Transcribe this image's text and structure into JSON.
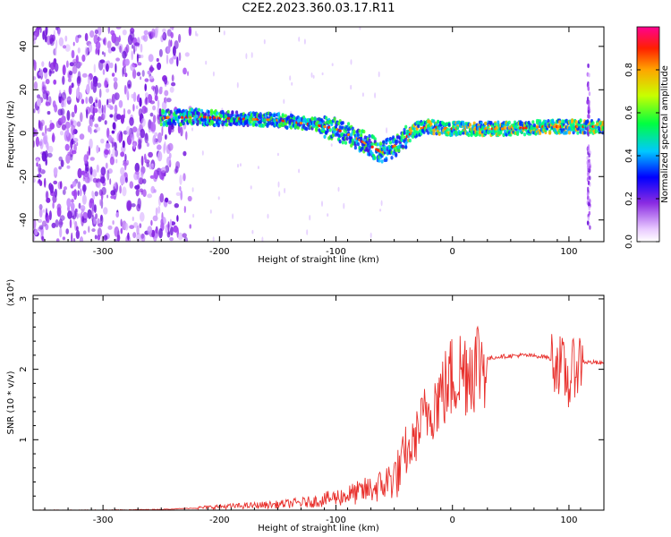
{
  "title": "C2E2.2023.360.03.17.R11",
  "chart_data": [
    {
      "type": "heatmap",
      "xlabel": "Height of straight line (km)",
      "ylabel": "Frequency (Hz)",
      "xlim": [
        -360,
        130
      ],
      "ylim": [
        -50,
        49
      ],
      "xticks": [
        -300,
        -200,
        -100,
        0,
        100
      ],
      "yticks": [
        -40,
        -20,
        0,
        20,
        40
      ],
      "colorbar": {
        "label": "Normalized spectral amplitude",
        "range": [
          0,
          1
        ],
        "ticks": [
          "0.0",
          "0.2",
          "0.4",
          "0.6",
          "0.8"
        ]
      },
      "ridge": {
        "x": [
          -250,
          -220,
          -200,
          -150,
          -120,
          -100,
          -80,
          -60,
          -50,
          -40,
          -30,
          -20,
          0,
          50,
          80,
          100,
          130
        ],
        "y": [
          7,
          7.5,
          7,
          6,
          4,
          2,
          -3,
          -9,
          -6,
          -2,
          2,
          3,
          2,
          2,
          3,
          3,
          3
        ]
      },
      "spike_x": 117
    },
    {
      "type": "line",
      "xlabel": "Height of straight line (km)",
      "ylabel": "SNR (10 * v/v)",
      "y_multiplier": "(x10⁴)",
      "xlim": [
        -360,
        130
      ],
      "ylim": [
        0,
        3.05
      ],
      "xticks": [
        -300,
        -200,
        -100,
        0,
        100
      ],
      "yticks": [
        1,
        2,
        3
      ],
      "series": [
        {
          "color": "#e8302c",
          "x": [
            -360,
            -300,
            -250,
            -220,
            -200,
            -180,
            -150,
            -120,
            -100,
            -80,
            -60,
            -45,
            -35,
            -25,
            -15,
            -5,
            0,
            10,
            20,
            30,
            40,
            60,
            80,
            90,
            95,
            100,
            105,
            110,
            115,
            120,
            130
          ],
          "y": [
            0,
            0,
            0.01,
            0.03,
            0.05,
            0.06,
            0.08,
            0.12,
            0.18,
            0.25,
            0.35,
            0.55,
            0.9,
            1.3,
            1.55,
            1.75,
            1.9,
            2.0,
            2.1,
            2.15,
            2.18,
            2.2,
            2.18,
            2.1,
            2.0,
            1.8,
            2.05,
            2.12,
            2.1,
            2.1,
            2.08
          ]
        }
      ]
    }
  ]
}
